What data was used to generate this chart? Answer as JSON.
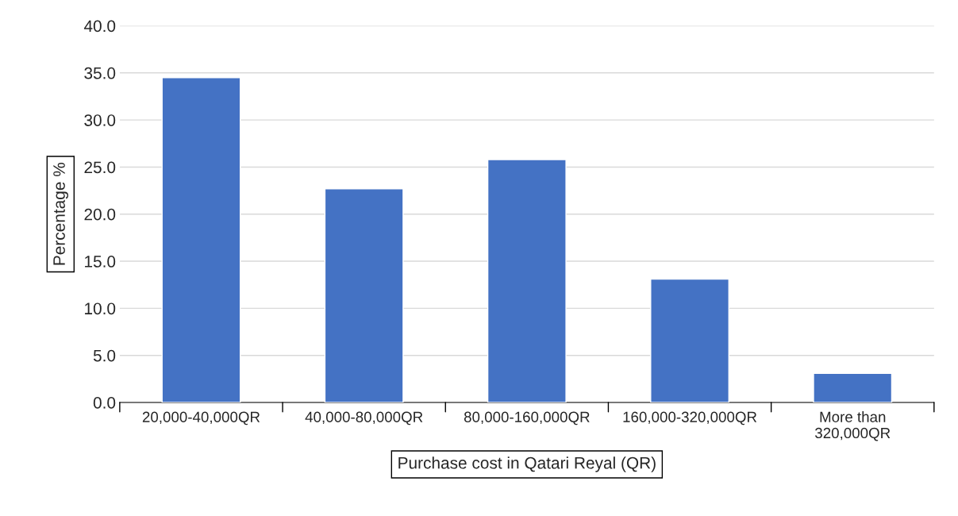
{
  "chart_data": {
    "type": "bar",
    "xlabel": "Purchase cost in Qatari Reyal (QR)",
    "ylabel": "Percentage %",
    "categories": [
      "20,000-40,000QR",
      "40,000-80,000QR",
      "80,000-160,000QR",
      "160,000-320,000QR",
      "More than\n320,000QR"
    ],
    "values": [
      34.5,
      22.7,
      25.8,
      13.1,
      3.1
    ],
    "color": "#4472c4",
    "ylim": [
      0,
      40
    ],
    "yticks": [
      {
        "value": 0,
        "label": "0.0"
      },
      {
        "value": 5,
        "label": "5.0"
      },
      {
        "value": 10,
        "label": "10.0"
      },
      {
        "value": 15,
        "label": "15.0"
      },
      {
        "value": 20,
        "label": "20.0"
      },
      {
        "value": 25,
        "label": "25.0"
      },
      {
        "value": 30,
        "label": "30.0"
      },
      {
        "value": 35,
        "label": "35.0"
      },
      {
        "value": 40,
        "label": "40.0"
      }
    ],
    "grid": "y",
    "legend": false
  }
}
